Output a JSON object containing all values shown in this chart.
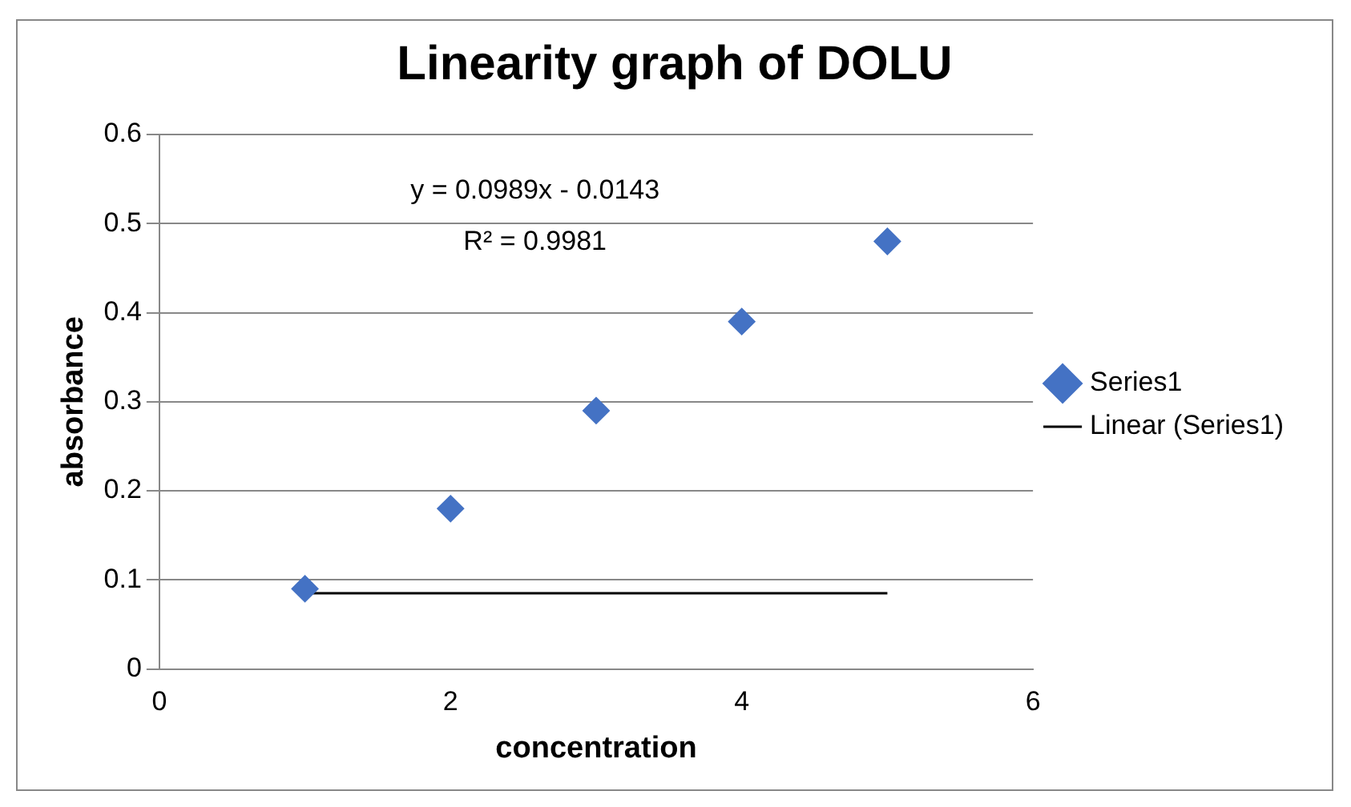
{
  "chart_data": {
    "type": "scatter",
    "title": "Linearity graph of DOLU",
    "xlabel": "concentration",
    "ylabel": "absorbance",
    "series": [
      {
        "name": "Series1",
        "marker": "diamond",
        "color": "#4472c4",
        "x": [
          1,
          2,
          3,
          4,
          5
        ],
        "values": [
          0.09,
          0.18,
          0.29,
          0.39,
          0.48
        ]
      },
      {
        "name": "Linear (Series1)",
        "type": "line",
        "marker": "none",
        "color": "#000000",
        "x": [
          1,
          5
        ],
        "values": [
          0.085,
          0.085
        ]
      }
    ],
    "annotations": [
      "y = 0.0989x - 0.0143",
      "R² = 0.9981"
    ],
    "xlim": [
      0,
      6
    ],
    "xticks": [
      0,
      2,
      4,
      6
    ],
    "ylim": [
      0,
      0.6
    ],
    "yticks": [
      0,
      0.1,
      0.2,
      0.3,
      0.4,
      0.5,
      0.6
    ],
    "grid": "y",
    "legend": "right"
  }
}
